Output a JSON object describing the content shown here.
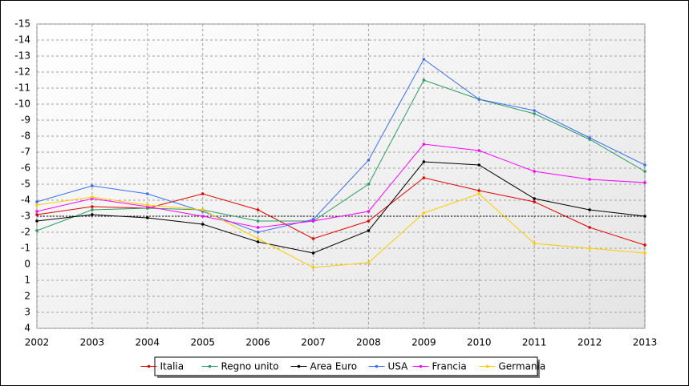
{
  "chart_data": {
    "type": "line",
    "categories": [
      "2002",
      "2003",
      "2004",
      "2005",
      "2006",
      "2007",
      "2008",
      "2009",
      "2010",
      "2011",
      "2012",
      "2013"
    ],
    "series": [
      {
        "name": "Italia",
        "color": "#e00000",
        "values": [
          -3.1,
          -3.6,
          -3.5,
          -4.4,
          -3.4,
          -1.6,
          -2.7,
          -5.4,
          -4.6,
          -3.9,
          -2.3,
          -1.2
        ]
      },
      {
        "name": "Regno unito",
        "color": "#2e9b63",
        "values": [
          -2.1,
          -3.4,
          -3.5,
          -3.4,
          -2.7,
          -2.7,
          -5.0,
          -11.5,
          -10.3,
          -9.4,
          -7.8,
          -5.8
        ]
      },
      {
        "name": "Area Euro",
        "color": "#000000",
        "values": [
          -2.7,
          -3.1,
          -2.9,
          -2.5,
          -1.4,
          -0.7,
          -2.1,
          -6.4,
          -6.2,
          -4.1,
          -3.4,
          -3.0
        ]
      },
      {
        "name": "USA",
        "color": "#3a6ff0",
        "values": [
          -3.9,
          -4.9,
          -4.4,
          -3.3,
          -2.0,
          -2.8,
          -6.5,
          -12.8,
          -10.3,
          -9.6,
          -7.9,
          -6.2
        ]
      },
      {
        "name": "Francia",
        "color": "#ff00ff",
        "values": [
          -3.3,
          -4.1,
          -3.6,
          -3.0,
          -2.3,
          -2.7,
          -3.3,
          -7.5,
          -7.1,
          -5.8,
          -5.3,
          -5.1
        ]
      },
      {
        "name": "Germania",
        "color": "#ffcc00",
        "values": [
          -3.7,
          -4.2,
          -3.7,
          -3.4,
          -1.6,
          0.2,
          -0.1,
          -3.2,
          -4.4,
          -1.3,
          -1.0,
          -0.7
        ]
      }
    ],
    "ylim": [
      -15,
      4
    ],
    "y_inverted": true,
    "yticks": [
      -15,
      -14,
      -13,
      -12,
      -11,
      -10,
      -9,
      -8,
      -7,
      -6,
      -5,
      -4,
      -3,
      -2,
      -1,
      0,
      1,
      2,
      3,
      4
    ],
    "reference_line": -3,
    "grid": true,
    "legend": "bottom"
  }
}
